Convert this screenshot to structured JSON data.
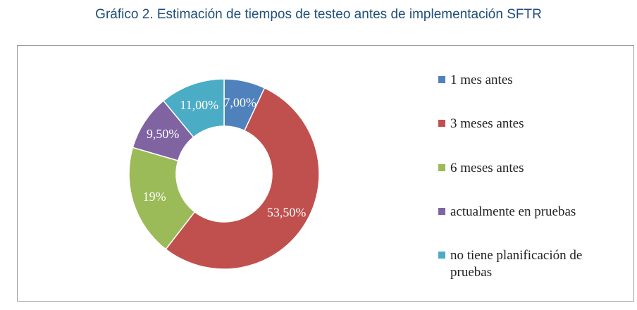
{
  "title": "Gráfico 2. Estimación de tiempos de testeo antes de implementación SFTR",
  "chart_data": {
    "type": "pie",
    "donut": true,
    "title": "Gráfico 2. Estimación de tiempos de testeo antes de implementación SFTR",
    "legend_position": "right",
    "categories": [
      "1 mes antes",
      "3 meses antes",
      "6 meses antes",
      "actualmente en pruebas",
      "no tiene planificación de pruebas"
    ],
    "values": [
      7.0,
      53.5,
      19.0,
      9.5,
      11.0
    ],
    "labels": [
      "7,00%",
      "53,50%",
      "19%",
      "9,50%",
      "11,00%"
    ],
    "colors": [
      "#4f81bd",
      "#c0504d",
      "#9bbb59",
      "#8064a2",
      "#4bacc6"
    ]
  },
  "legend": [
    {
      "label": "1 mes antes",
      "color": "#4f81bd"
    },
    {
      "label": "3 meses antes",
      "color": "#c0504d"
    },
    {
      "label": "6 meses antes",
      "color": "#9bbb59"
    },
    {
      "label": "actualmente en pruebas",
      "color": "#8064a2"
    },
    {
      "label": "no tiene planificación de pruebas",
      "color": "#4bacc6"
    }
  ]
}
